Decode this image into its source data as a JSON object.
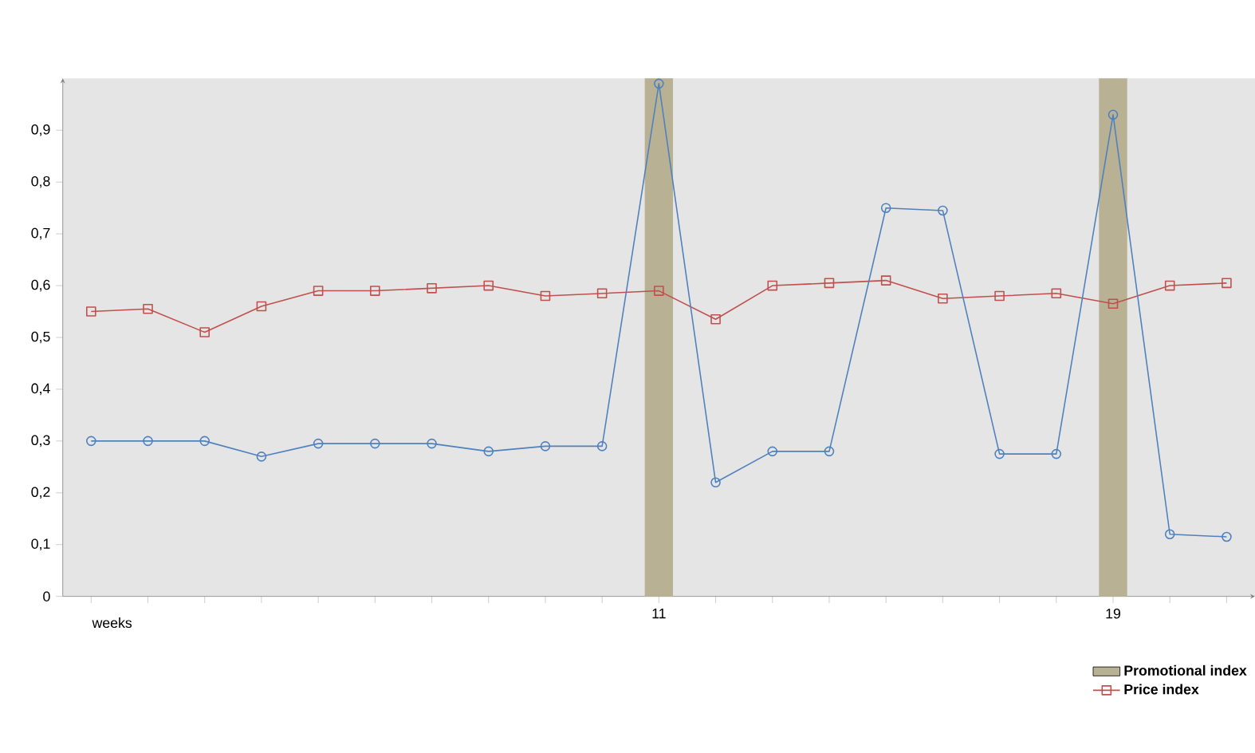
{
  "chart_data": {
    "type": "line",
    "xlabel": "weeks",
    "categories": [
      null,
      null,
      null,
      null,
      null,
      null,
      null,
      null,
      null,
      null,
      "11",
      null,
      null,
      null,
      null,
      null,
      null,
      null,
      "19",
      null,
      null
    ],
    "series": [
      {
        "name": "Promotional index",
        "type": "bar",
        "color": "#b8b194",
        "values": [
          null,
          null,
          null,
          null,
          null,
          null,
          null,
          null,
          null,
          null,
          1,
          null,
          null,
          null,
          null,
          null,
          null,
          null,
          1,
          null,
          null
        ]
      },
      {
        "name": "Price index",
        "color": "#c0504d",
        "marker": "square",
        "values": [
          0.55,
          0.555,
          0.51,
          0.56,
          0.59,
          0.59,
          0.595,
          0.6,
          0.58,
          0.585,
          0.59,
          0.535,
          0.6,
          0.605,
          0.61,
          0.575,
          0.58,
          0.585,
          0.565,
          0.6,
          0.605
        ]
      },
      {
        "color": "#4f81bd",
        "marker": "circle",
        "values": [
          0.3,
          0.3,
          0.3,
          0.27,
          0.295,
          0.295,
          0.295,
          0.28,
          0.29,
          0.29,
          0.99,
          0.22,
          0.28,
          0.28,
          0.75,
          0.745,
          0.275,
          0.275,
          0.93,
          0.12,
          0.115
        ]
      }
    ],
    "ylim": [
      0,
      1
    ],
    "yticks": [
      0,
      {
        "value": 0.1,
        "label": "0,1"
      },
      {
        "value": 0.2,
        "label": "0,2"
      },
      {
        "value": 0.3,
        "label": "0,3"
      },
      {
        "value": 0.4,
        "label": "0,4"
      },
      {
        "value": 0.5,
        "label": "0,5"
      },
      {
        "value": 0.6,
        "label": "0,6"
      },
      {
        "value": 0.7,
        "label": "0,7"
      },
      {
        "value": 0.8,
        "label": "0,8"
      },
      {
        "value": 0.9,
        "label": "0,9"
      }
    ],
    "grid": false,
    "legend": "bottom right"
  }
}
